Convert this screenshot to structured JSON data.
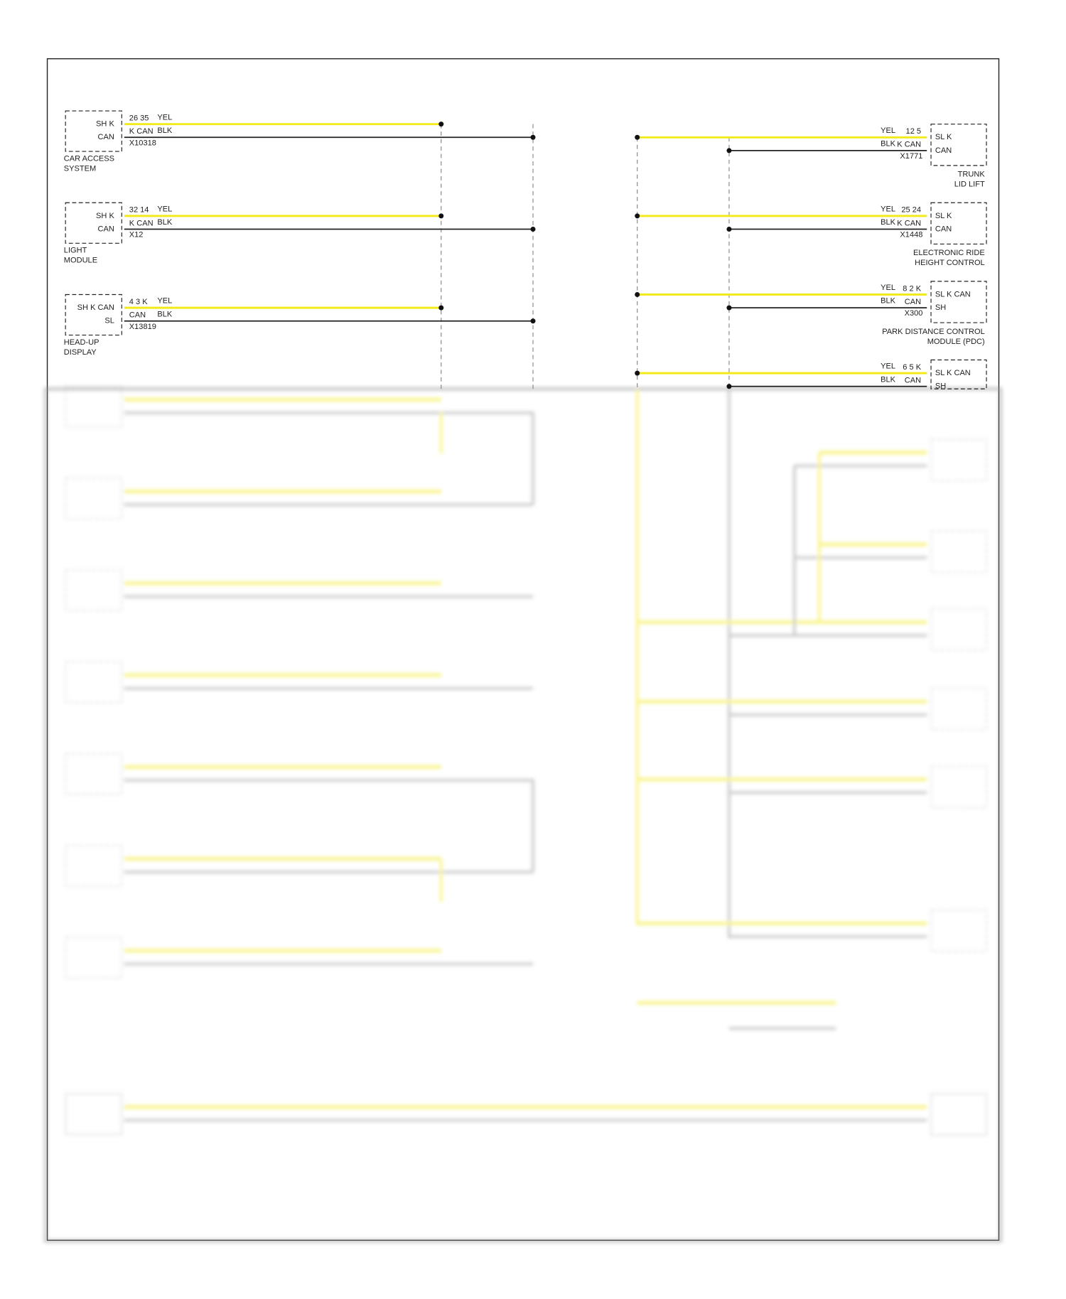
{
  "left_modules": [
    {
      "box": [
        "SH K",
        "CAN"
      ],
      "pins": "26 35",
      "wire1": "YEL",
      "can": "K CAN",
      "wire2": "BLK",
      "connector": "X10318",
      "name": [
        "CAR ACCESS",
        "SYSTEM"
      ]
    },
    {
      "box": [
        "SH K",
        "CAN"
      ],
      "pins": "32 14",
      "wire1": "YEL",
      "can": "K CAN",
      "wire2": "BLK",
      "connector": "X12",
      "name": [
        "LIGHT",
        "MODULE"
      ]
    },
    {
      "box": [
        "SH K CAN",
        "SL"
      ],
      "pins": "4 3 K",
      "wire1": "YEL",
      "can": "CAN",
      "wire2": "BLK",
      "connector": "X13819",
      "name": [
        "HEAD-UP",
        "DISPLAY"
      ]
    }
  ],
  "right_modules": [
    {
      "box": [
        "SL K",
        "CAN"
      ],
      "pins": "12 5",
      "wire1": "YEL",
      "can": "K CAN",
      "wire2": "BLK",
      "connector": "X1771",
      "name": [
        "TRUNK",
        "LID LIFT"
      ]
    },
    {
      "box": [
        "SL K",
        "CAN"
      ],
      "pins": "25 24",
      "wire1": "YEL",
      "can": "K CAN",
      "wire2": "BLK",
      "connector": "X1448",
      "name": [
        "ELECTRONIC RIDE",
        "HEIGHT CONTROL"
      ]
    },
    {
      "box": [
        "SL K CAN",
        "SH"
      ],
      "pins": "8 2 K",
      "wire1": "YEL",
      "can": "CAN",
      "wire2": "BLK",
      "connector": "X300",
      "name": [
        "PARK DISTANCE CONTROL",
        "MODULE (PDC)"
      ]
    },
    {
      "box": [
        "SL K CAN",
        "SH"
      ],
      "pins": "6 5 K",
      "wire1": "YEL",
      "can": "CAN",
      "wire2": "BLK"
    }
  ]
}
